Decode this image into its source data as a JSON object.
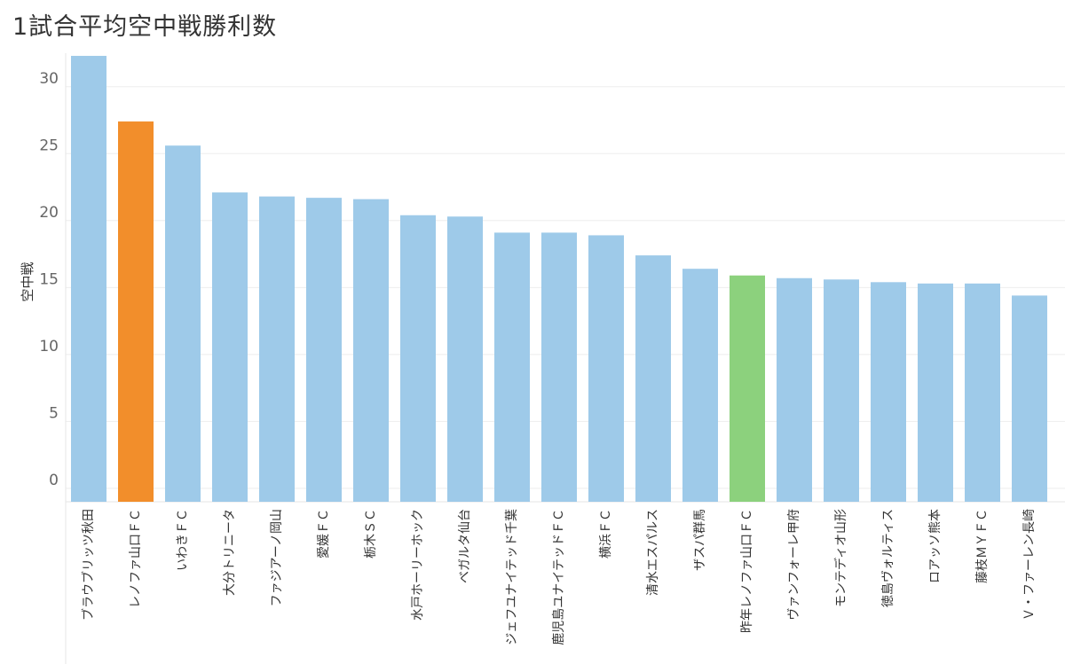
{
  "chart_data": {
    "type": "bar",
    "title": "1試合平均空中戦勝利数",
    "xlabel": "",
    "ylabel": "空中戦",
    "ylim": [
      -1,
      32.5
    ],
    "yticks": [
      0,
      5,
      10,
      15,
      20,
      25,
      30
    ],
    "grid": true,
    "categories": [
      "ブラウブリッツ秋田",
      "レノファ山口ＦＣ",
      "いわきＦＣ",
      "大分トリニータ",
      "ファジアーノ岡山",
      "愛媛ＦＣ",
      "栃木ＳＣ",
      "水戸ホーリーホック",
      "ベガルタ仙台",
      "ジェフユナイテッド千葉",
      "鹿児島ユナイテッドＦＣ",
      "横浜ＦＣ",
      "清水エスパルス",
      "ザスパ群馬",
      "昨年レノファ山口ＦＣ",
      "ヴァンフォーレ甲府",
      "モンテディオ山形",
      "徳島ヴォルティス",
      "ロアッソ熊本",
      "藤枝ＭＹＦＣ",
      "Ｖ・ファーレン長崎"
    ],
    "values": [
      32.3,
      27.4,
      25.6,
      22.1,
      21.8,
      21.7,
      21.6,
      20.4,
      20.3,
      19.1,
      19.1,
      18.9,
      17.4,
      16.4,
      15.9,
      15.7,
      15.6,
      15.4,
      15.3,
      15.3,
      14.4
    ],
    "colors": {
      "default": "#9ecae9",
      "highlight": "#f28e2b",
      "previous": "#8cd17d"
    },
    "bar_colors": [
      "default",
      "highlight",
      "default",
      "default",
      "default",
      "default",
      "default",
      "default",
      "default",
      "default",
      "default",
      "default",
      "default",
      "default",
      "previous",
      "default",
      "default",
      "default",
      "default",
      "default",
      "default"
    ]
  }
}
